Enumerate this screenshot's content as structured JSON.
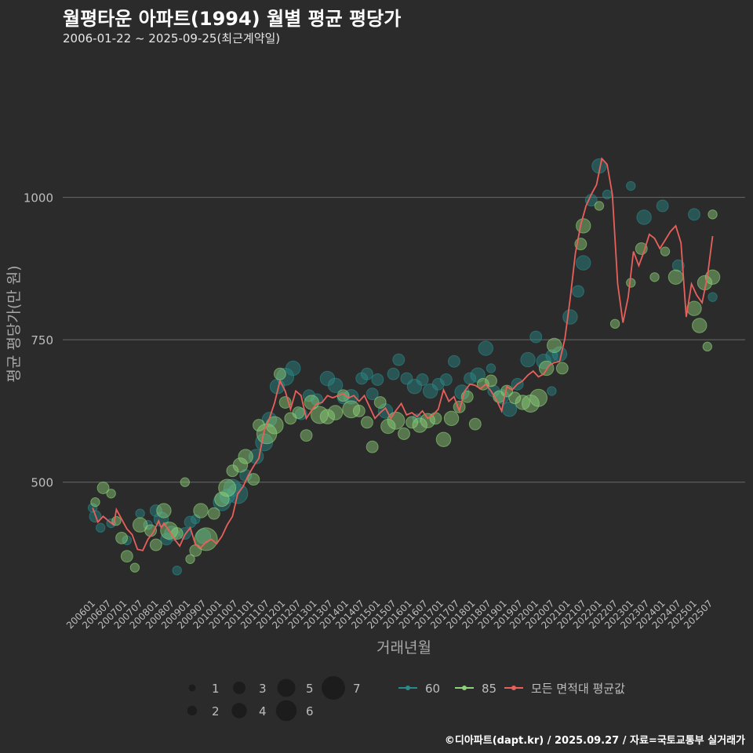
{
  "header": {
    "title": "월평타운 아파트(1994) 월별 평균 평당가",
    "subtitle": "2006-01-22 ~ 2025-09-25(최근계약일)"
  },
  "caption": "©디아파트(dapt.kr) / 2025.09.27 / 자료=국토교통부 실거래가",
  "colors": {
    "background": "#2b2b2b",
    "grid": "#6a6a6a",
    "series_60": "#2a8a8a",
    "series_85": "#8fd27a",
    "avg_line": "#e8605c",
    "text": "#bdbdbd"
  },
  "chart_data": {
    "type": "scatter",
    "title": "월평타운 아파트(1994) 월별 평균 평당가",
    "xlabel": "거래년월",
    "ylabel": "평균 평당가(만 원)",
    "ylim": [
      300,
      1250
    ],
    "yticks": [
      500,
      750,
      1000
    ],
    "x_range": [
      "200601",
      "202509"
    ],
    "x_ticks": [
      "200601",
      "200607",
      "200701",
      "200707",
      "200801",
      "200807",
      "200901",
      "200907",
      "201001",
      "201007",
      "201101",
      "201107",
      "201201",
      "201207",
      "201301",
      "201307",
      "201401",
      "201407",
      "201501",
      "201507",
      "201601",
      "201607",
      "201701",
      "201707",
      "201801",
      "201807",
      "201901",
      "201907",
      "202001",
      "202007",
      "202101",
      "202107",
      "202201",
      "202207",
      "202301",
      "202307",
      "202401",
      "202407",
      "202501",
      "202507"
    ],
    "size_legend": {
      "title": "",
      "values": [
        1,
        2,
        3,
        4,
        5,
        6,
        7
      ]
    },
    "color_legend": [
      {
        "name": "60",
        "color": "#2a8a8a"
      },
      {
        "name": "85",
        "color": "#8fd27a"
      },
      {
        "name": "모든 면적대 평균값",
        "color": "#e8605c"
      }
    ],
    "avg_line": [
      [
        "200601",
        455
      ],
      [
        "200603",
        430
      ],
      [
        "200605",
        440
      ],
      [
        "200607",
        432
      ],
      [
        "200609",
        425
      ],
      [
        "200610",
        452
      ],
      [
        "200612",
        435
      ],
      [
        "200702",
        418
      ],
      [
        "200704",
        408
      ],
      [
        "200706",
        382
      ],
      [
        "200708",
        380
      ],
      [
        "200710",
        400
      ],
      [
        "200712",
        412
      ],
      [
        "200802",
        432
      ],
      [
        "200803",
        420
      ],
      [
        "200804",
        428
      ],
      [
        "200806",
        415
      ],
      [
        "200808",
        400
      ],
      [
        "200810",
        388
      ],
      [
        "200812",
        408
      ],
      [
        "200902",
        420
      ],
      [
        "200904",
        390
      ],
      [
        "200906",
        385
      ],
      [
        "200908",
        395
      ],
      [
        "200910",
        400
      ],
      [
        "200912",
        392
      ],
      [
        "201002",
        405
      ],
      [
        "201004",
        425
      ],
      [
        "201006",
        440
      ],
      [
        "201008",
        480
      ],
      [
        "201010",
        492
      ],
      [
        "201012",
        512
      ],
      [
        "201102",
        528
      ],
      [
        "201104",
        542
      ],
      [
        "201106",
        590
      ],
      [
        "201108",
        612
      ],
      [
        "201110",
        640
      ],
      [
        "201112",
        678
      ],
      [
        "201202",
        660
      ],
      [
        "201204",
        628
      ],
      [
        "201206",
        660
      ],
      [
        "201208",
        652
      ],
      [
        "201210",
        612
      ],
      [
        "201212",
        626
      ],
      [
        "201302",
        638
      ],
      [
        "201304",
        640
      ],
      [
        "201306",
        652
      ],
      [
        "201308",
        648
      ],
      [
        "201310",
        652
      ],
      [
        "201312",
        655
      ],
      [
        "201402",
        648
      ],
      [
        "201404",
        652
      ],
      [
        "201406",
        642
      ],
      [
        "201408",
        652
      ],
      [
        "201410",
        632
      ],
      [
        "201412",
        612
      ],
      [
        "201502",
        622
      ],
      [
        "201504",
        630
      ],
      [
        "201506",
        612
      ],
      [
        "201508",
        626
      ],
      [
        "201510",
        638
      ],
      [
        "201512",
        618
      ],
      [
        "201602",
        622
      ],
      [
        "201604",
        615
      ],
      [
        "201606",
        625
      ],
      [
        "201608",
        612
      ],
      [
        "201610",
        618
      ],
      [
        "201612",
        628
      ],
      [
        "201702",
        662
      ],
      [
        "201704",
        642
      ],
      [
        "201706",
        650
      ],
      [
        "201708",
        625
      ],
      [
        "201710",
        660
      ],
      [
        "201712",
        672
      ],
      [
        "201802",
        670
      ],
      [
        "201804",
        664
      ],
      [
        "201806",
        672
      ],
      [
        "201808",
        660
      ],
      [
        "201810",
        645
      ],
      [
        "201812",
        625
      ],
      [
        "201902",
        668
      ],
      [
        "201904",
        662
      ],
      [
        "201906",
        672
      ],
      [
        "201908",
        678
      ],
      [
        "201910",
        688
      ],
      [
        "201912",
        695
      ],
      [
        "202002",
        685
      ],
      [
        "202004",
        690
      ],
      [
        "202006",
        705
      ],
      [
        "202008",
        710
      ],
      [
        "202010",
        712
      ],
      [
        "202012",
        752
      ],
      [
        "202102",
        822
      ],
      [
        "202104",
        902
      ],
      [
        "202106",
        952
      ],
      [
        "202108",
        985
      ],
      [
        "202110",
        1005
      ],
      [
        "202112",
        1022
      ],
      [
        "202202",
        1068
      ],
      [
        "202204",
        1058
      ],
      [
        "202206",
        1005
      ],
      [
        "202208",
        848
      ],
      [
        "202210",
        780
      ],
      [
        "202212",
        825
      ],
      [
        "202302",
        905
      ],
      [
        "202304",
        880
      ],
      [
        "202306",
        905
      ],
      [
        "202308",
        935
      ],
      [
        "202310",
        928
      ],
      [
        "202312",
        910
      ],
      [
        "202402",
        925
      ],
      [
        "202404",
        940
      ],
      [
        "202406",
        950
      ],
      [
        "202408",
        920
      ],
      [
        "202410",
        790
      ],
      [
        "202412",
        848
      ],
      [
        "202502",
        828
      ],
      [
        "202504",
        815
      ],
      [
        "202506",
        860
      ],
      [
        "202508",
        932
      ]
    ],
    "series": [
      {
        "name": "60",
        "points": [
          [
            "200601",
            455,
            2
          ],
          [
            "200602",
            440,
            3
          ],
          [
            "200608",
            428,
            2
          ],
          [
            "200702",
            398,
            2
          ],
          [
            "200707",
            445,
            2
          ],
          [
            "200710",
            425,
            2
          ],
          [
            "200801",
            450,
            3
          ],
          [
            "200803",
            435,
            4
          ],
          [
            "200805",
            400,
            3
          ],
          [
            "200807",
            410,
            4
          ],
          [
            "200809",
            345,
            2
          ],
          [
            "200812",
            410,
            3
          ],
          [
            "200902",
            430,
            3
          ],
          [
            "200907",
            405,
            4
          ],
          [
            "201002",
            465,
            5
          ],
          [
            "201004",
            475,
            4
          ],
          [
            "201006",
            490,
            5
          ],
          [
            "201008",
            480,
            6
          ],
          [
            "201011",
            512,
            3
          ],
          [
            "201103",
            545,
            4
          ],
          [
            "201106",
            570,
            5
          ],
          [
            "201108",
            610,
            4
          ],
          [
            "201111",
            668,
            4
          ],
          [
            "201202",
            685,
            5
          ],
          [
            "201205",
            700,
            4
          ],
          [
            "201208",
            620,
            3
          ],
          [
            "201211",
            652,
            3
          ],
          [
            "201302",
            645,
            3
          ],
          [
            "201306",
            682,
            4
          ],
          [
            "201309",
            670,
            4
          ],
          [
            "201312",
            648,
            3
          ],
          [
            "201403",
            650,
            4
          ],
          [
            "201407",
            682,
            3
          ],
          [
            "201409",
            690,
            3
          ],
          [
            "201411",
            655,
            3
          ],
          [
            "201501",
            680,
            3
          ],
          [
            "201504",
            625,
            4
          ],
          [
            "201507",
            690,
            3
          ],
          [
            "201509",
            715,
            3
          ],
          [
            "201512",
            682,
            3
          ],
          [
            "201603",
            668,
            4
          ],
          [
            "201606",
            680,
            3
          ],
          [
            "201609",
            660,
            4
          ],
          [
            "201612",
            672,
            3
          ],
          [
            "201703",
            680,
            3
          ],
          [
            "201706",
            712,
            3
          ],
          [
            "201709",
            658,
            4
          ],
          [
            "201712",
            682,
            3
          ],
          [
            "201803",
            688,
            4
          ],
          [
            "201806",
            735,
            4
          ],
          [
            "201809",
            660,
            3
          ],
          [
            "201812",
            650,
            4
          ],
          [
            "201903",
            628,
            4
          ],
          [
            "201906",
            672,
            3
          ],
          [
            "201910",
            715,
            4
          ],
          [
            "202001",
            755,
            3
          ],
          [
            "202004",
            712,
            4
          ],
          [
            "202007",
            722,
            3
          ],
          [
            "202010",
            725,
            4
          ],
          [
            "202102",
            790,
            4
          ],
          [
            "202105",
            835,
            3
          ],
          [
            "202107",
            885,
            4
          ],
          [
            "202110",
            995,
            3
          ],
          [
            "202201",
            1055,
            4
          ],
          [
            "202204",
            1005,
            2
          ],
          [
            "202301",
            1020,
            2
          ],
          [
            "202306",
            965,
            4
          ],
          [
            "202401",
            985,
            3
          ],
          [
            "202407",
            880,
            3
          ],
          [
            "202501",
            970,
            3
          ],
          [
            "202508",
            825,
            2
          ],
          [
            "200604",
            420,
            2
          ],
          [
            "200904",
            435,
            2
          ],
          [
            "201604",
            612,
            2
          ],
          [
            "201808",
            700,
            2
          ],
          [
            "202007",
            660,
            2
          ]
        ]
      },
      {
        "name": "85",
        "points": [
          [
            "200602",
            465,
            2
          ],
          [
            "200605",
            490,
            3
          ],
          [
            "200608",
            480,
            2
          ],
          [
            "200610",
            432,
            2
          ],
          [
            "200612",
            402,
            3
          ],
          [
            "200702",
            370,
            3
          ],
          [
            "200705",
            350,
            2
          ],
          [
            "200707",
            425,
            4
          ],
          [
            "200711",
            415,
            3
          ],
          [
            "200801",
            390,
            3
          ],
          [
            "200804",
            450,
            4
          ],
          [
            "200806",
            415,
            5
          ],
          [
            "200809",
            410,
            3
          ],
          [
            "200812",
            500,
            2
          ],
          [
            "200902",
            365,
            2
          ],
          [
            "200904",
            380,
            3
          ],
          [
            "200906",
            450,
            4
          ],
          [
            "200908",
            400,
            7
          ],
          [
            "200911",
            445,
            3
          ],
          [
            "201002",
            470,
            4
          ],
          [
            "201004",
            490,
            5
          ],
          [
            "201006",
            520,
            3
          ],
          [
            "201009",
            530,
            4
          ],
          [
            "201011",
            545,
            4
          ],
          [
            "201102",
            505,
            3
          ],
          [
            "201104",
            600,
            3
          ],
          [
            "201107",
            585,
            6
          ],
          [
            "201110",
            600,
            5
          ],
          [
            "201112",
            690,
            3
          ],
          [
            "201202",
            640,
            3
          ],
          [
            "201204",
            612,
            3
          ],
          [
            "201207",
            622,
            3
          ],
          [
            "201210",
            582,
            3
          ],
          [
            "201212",
            640,
            4
          ],
          [
            "201303",
            618,
            5
          ],
          [
            "201306",
            615,
            4
          ],
          [
            "201309",
            622,
            4
          ],
          [
            "201312",
            652,
            3
          ],
          [
            "201403",
            628,
            5
          ],
          [
            "201406",
            625,
            3
          ],
          [
            "201409",
            605,
            3
          ],
          [
            "201411",
            562,
            3
          ],
          [
            "201502",
            640,
            3
          ],
          [
            "201505",
            598,
            4
          ],
          [
            "201508",
            608,
            5
          ],
          [
            "201511",
            585,
            3
          ],
          [
            "201602",
            605,
            3
          ],
          [
            "201605",
            600,
            4
          ],
          [
            "201608",
            608,
            4
          ],
          [
            "201611",
            612,
            3
          ],
          [
            "201702",
            575,
            4
          ],
          [
            "201705",
            612,
            4
          ],
          [
            "201708",
            632,
            3
          ],
          [
            "201711",
            650,
            3
          ],
          [
            "201802",
            602,
            3
          ],
          [
            "201805",
            672,
            3
          ],
          [
            "201808",
            678,
            3
          ],
          [
            "201811",
            650,
            3
          ],
          [
            "201902",
            660,
            3
          ],
          [
            "201905",
            648,
            3
          ],
          [
            "201908",
            640,
            4
          ],
          [
            "201911",
            638,
            5
          ],
          [
            "202002",
            648,
            5
          ],
          [
            "202005",
            700,
            4
          ],
          [
            "202008",
            740,
            4
          ],
          [
            "202011",
            700,
            3
          ],
          [
            "202106",
            918,
            3
          ],
          [
            "202107",
            950,
            4
          ],
          [
            "202201",
            985,
            2
          ],
          [
            "202207",
            778,
            2
          ],
          [
            "202301",
            850,
            2
          ],
          [
            "202305",
            910,
            3
          ],
          [
            "202310",
            860,
            2
          ],
          [
            "202402",
            905,
            2
          ],
          [
            "202406",
            860,
            4
          ],
          [
            "202501",
            805,
            4
          ],
          [
            "202503",
            775,
            4
          ],
          [
            "202505",
            850,
            4
          ],
          [
            "202508",
            860,
            4
          ],
          [
            "202508",
            970,
            2
          ],
          [
            "202506",
            738,
            2
          ]
        ]
      }
    ]
  }
}
